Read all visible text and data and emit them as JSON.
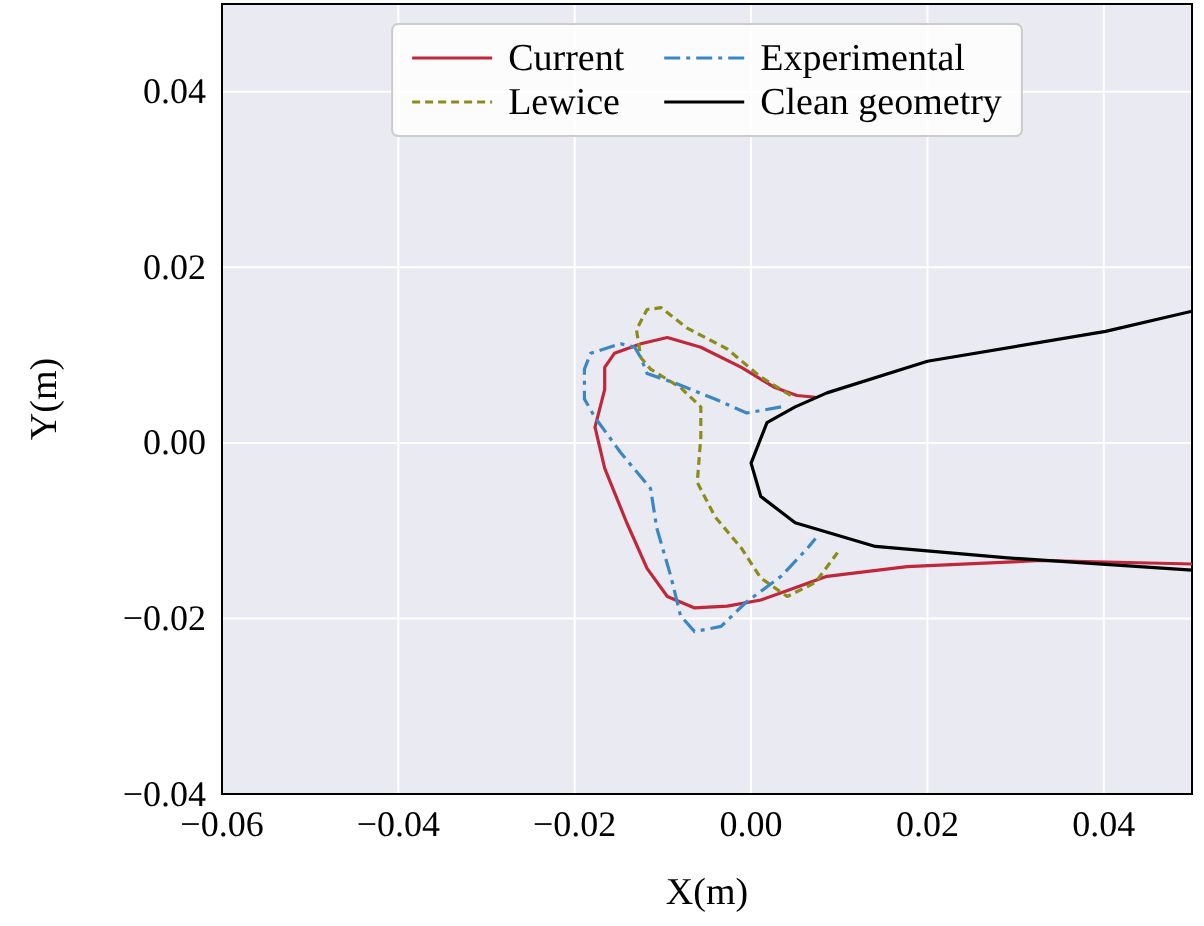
{
  "chart_data": {
    "type": "line",
    "xlabel": "X(m)",
    "ylabel": "Y(m)",
    "xlim": [
      -0.06,
      0.05
    ],
    "ylim": [
      -0.04,
      0.05
    ],
    "xticks": [
      {
        "value": -0.06,
        "label": "−0.06"
      },
      {
        "value": -0.04,
        "label": "−0.04"
      },
      {
        "value": -0.02,
        "label": "−0.02"
      },
      {
        "value": 0,
        "label": "0.00"
      },
      {
        "value": 0.02,
        "label": "0.02"
      },
      {
        "value": 0.04,
        "label": "0.04"
      }
    ],
    "yticks": [
      {
        "value": -0.04,
        "label": "−0.04"
      },
      {
        "value": -0.02,
        "label": "−0.02"
      },
      {
        "value": 0,
        "label": "0.00"
      },
      {
        "value": 0.02,
        "label": "0.02"
      },
      {
        "value": 0.04,
        "label": "0.04"
      }
    ],
    "grid": true,
    "legend": "top",
    "series": [
      {
        "name": "Current",
        "color": "#c1273b",
        "line_style": "solid",
        "x": [
          0.05,
          0.033,
          0.0177,
          0.0086,
          0.005,
          0.0011,
          -0.0027,
          -0.0064,
          -0.0095,
          -0.0118,
          -0.0141,
          -0.0166,
          -0.0177,
          -0.0166,
          -0.0166,
          -0.0155,
          -0.0125,
          -0.0095,
          -0.0057,
          -0.0011,
          0.0027,
          0.0052,
          0.0073
        ],
        "values": [
          -0.0138,
          -0.0134,
          -0.0141,
          -0.0152,
          -0.0165,
          -0.0179,
          -0.0186,
          -0.0188,
          -0.0175,
          -0.0143,
          -0.0091,
          -0.0029,
          0.0018,
          0.0061,
          0.0086,
          0.0102,
          0.0113,
          0.012,
          0.0109,
          0.0086,
          0.0063,
          0.0054,
          0.0052
        ]
      },
      {
        "name": "Lewice",
        "color": "#8c8c1a",
        "line_style": "dashed",
        "x": [
          0.0045,
          0.0011,
          -0.0027,
          -0.0073,
          -0.0102,
          -0.0118,
          -0.013,
          -0.0125,
          -0.0114,
          -0.008,
          -0.0057,
          -0.0057,
          -0.0061,
          -0.0041,
          -0.0011,
          0.0011,
          0.0041,
          0.0073,
          0.0098
        ],
        "values": [
          0.0054,
          0.0075,
          0.0107,
          0.0131,
          0.0154,
          0.0152,
          0.0129,
          0.0097,
          0.0084,
          0.0063,
          0.0041,
          0.0007,
          -0.0045,
          -0.0084,
          -0.012,
          -0.0154,
          -0.0175,
          -0.0159,
          -0.0125
        ]
      },
      {
        "name": "Experimental",
        "color": "#3b87c4",
        "line_style": "dashdot",
        "x": [
          0.0034,
          -0.0005,
          -0.0041,
          -0.0086,
          -0.0118,
          -0.0125,
          -0.0132,
          -0.0148,
          -0.0182,
          -0.0189,
          -0.0189,
          -0.0177,
          -0.0148,
          -0.0114,
          -0.0107,
          -0.0091,
          -0.008,
          -0.0064,
          -0.0034,
          -0.0005,
          0.0034,
          0.0064,
          0.0073
        ],
        "values": [
          0.0041,
          0.0034,
          0.005,
          0.0068,
          0.0079,
          0.0097,
          0.0109,
          0.0113,
          0.0102,
          0.0084,
          0.005,
          0.0029,
          -0.0011,
          -0.0052,
          -0.0097,
          -0.0152,
          -0.0197,
          -0.0215,
          -0.0209,
          -0.0181,
          -0.0152,
          -0.012,
          -0.0109
        ]
      },
      {
        "name": "Clean geometry",
        "color": "#000000",
        "line_style": "solid",
        "x": [
          0.05,
          0.0402,
          0.02,
          0.0086,
          0.005,
          0.0018,
          0,
          0.0011,
          0.005,
          0.0141,
          0.0291,
          0.05
        ],
        "values": [
          0.015,
          0.0127,
          0.0093,
          0.0057,
          0.0041,
          0.0023,
          -0.0023,
          -0.0061,
          -0.0091,
          -0.0118,
          -0.0131,
          -0.0145
        ]
      }
    ]
  }
}
